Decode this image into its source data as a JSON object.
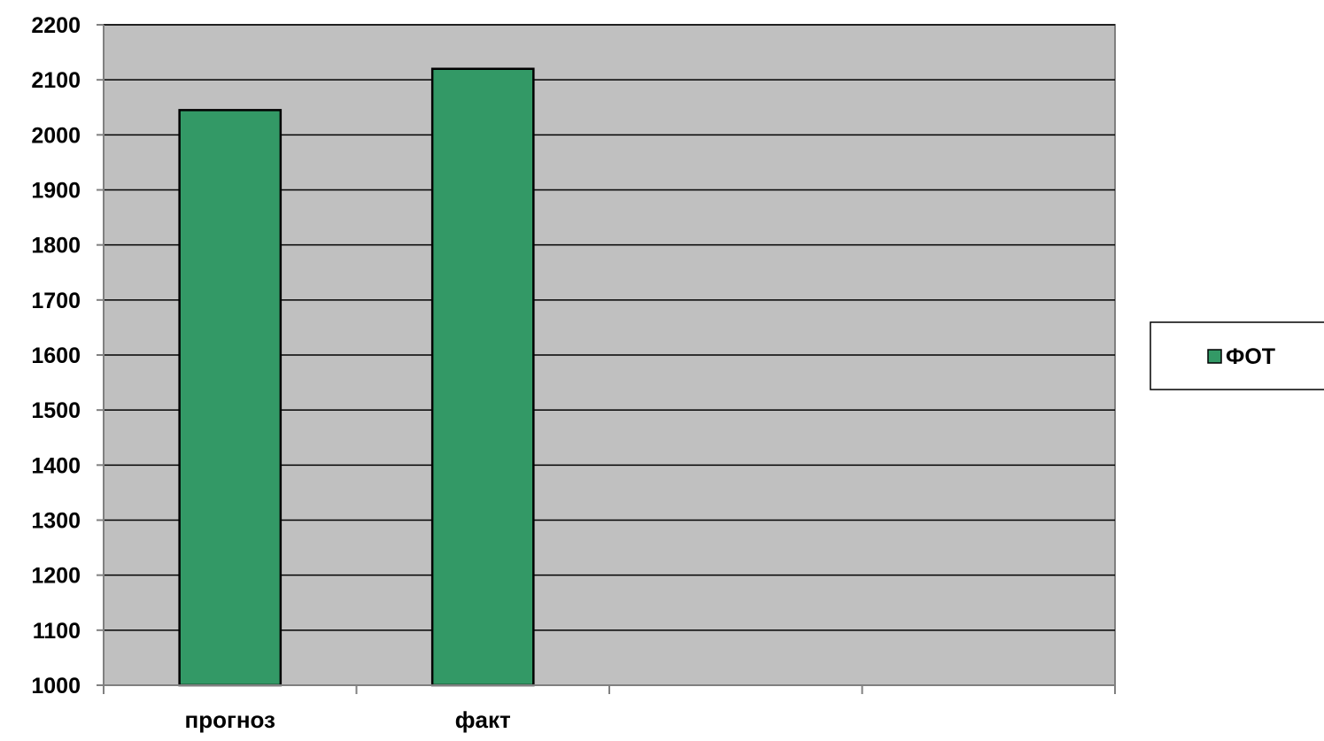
{
  "chart_data": {
    "type": "bar",
    "categories": [
      "прогноз",
      "факт",
      "",
      ""
    ],
    "series": [
      {
        "name": "ФОТ",
        "values": [
          2045,
          2120,
          null,
          null
        ]
      }
    ],
    "xlabel": "",
    "ylabel": "",
    "ylim": [
      1000,
      2200
    ],
    "yticks": [
      1000,
      1100,
      1200,
      1300,
      1400,
      1500,
      1600,
      1700,
      1800,
      1900,
      2000,
      2100,
      2200
    ],
    "grid": true,
    "legend_position": "right"
  },
  "colors": {
    "plot_background": "#c0c0c0",
    "bar_fill": "#339966",
    "grid_line": "#000000",
    "axis_line": "#808080"
  }
}
